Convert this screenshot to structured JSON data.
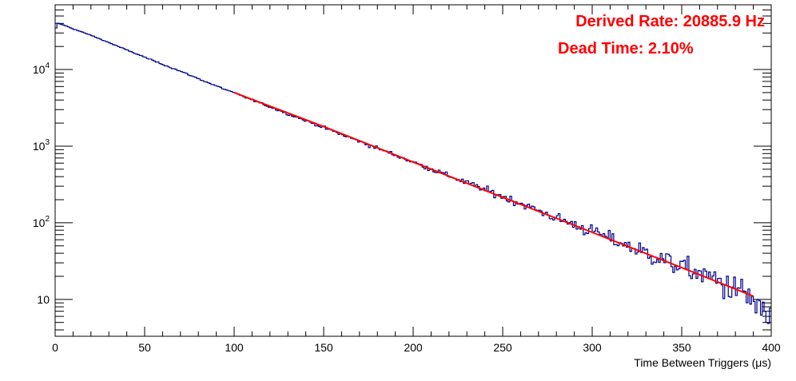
{
  "chart_data": {
    "type": "histogram",
    "xlabel": "Time Between Triggers (μs)",
    "ylabel": "",
    "x_scale": "linear",
    "y_scale": "log",
    "xlim": [
      0,
      400
    ],
    "ylim": [
      3.3,
      70000
    ],
    "x_ticks": [
      0,
      50,
      100,
      150,
      200,
      250,
      300,
      350,
      400
    ],
    "x_tick_labels": [
      "0",
      "50",
      "100",
      "150",
      "200",
      "250",
      "300",
      "350",
      "400"
    ],
    "y_ticks": [
      10,
      100,
      1000,
      10000
    ],
    "y_tick_labels": [
      {
        "base": "10",
        "exp": ""
      },
      {
        "base": "10",
        "exp": "2"
      },
      {
        "base": "10",
        "exp": "3"
      },
      {
        "base": "10",
        "exp": "4"
      }
    ],
    "grid": false,
    "annotations": [
      "Derived Rate: 20885.9 Hz",
      "Dead Time: 2.10%"
    ],
    "series": [
      {
        "kind": "histogram",
        "color": "#00008b",
        "x": [
          0,
          1,
          2,
          3,
          5,
          10,
          20,
          30,
          40,
          50,
          60,
          70,
          80,
          90,
          100,
          120,
          140,
          160,
          180,
          200,
          220,
          240,
          260,
          280,
          300,
          320,
          340,
          360,
          380,
          390,
          395,
          400
        ],
        "y": [
          30000,
          40000,
          40000,
          39000,
          38000,
          34000,
          28000,
          22500,
          18000,
          14500,
          11700,
          9500,
          7600,
          6100,
          4950,
          3250,
          2150,
          1420,
          940,
          620,
          410,
          270,
          180,
          115,
          78,
          50,
          33,
          22,
          14,
          10,
          6,
          6
        ]
      },
      {
        "kind": "fit",
        "color": "#ff0000",
        "x": [
          100,
          150,
          200,
          250,
          300,
          350,
          390
        ],
        "y": [
          5000,
          1800,
          620,
          215,
          75,
          26,
          11
        ]
      }
    ]
  }
}
